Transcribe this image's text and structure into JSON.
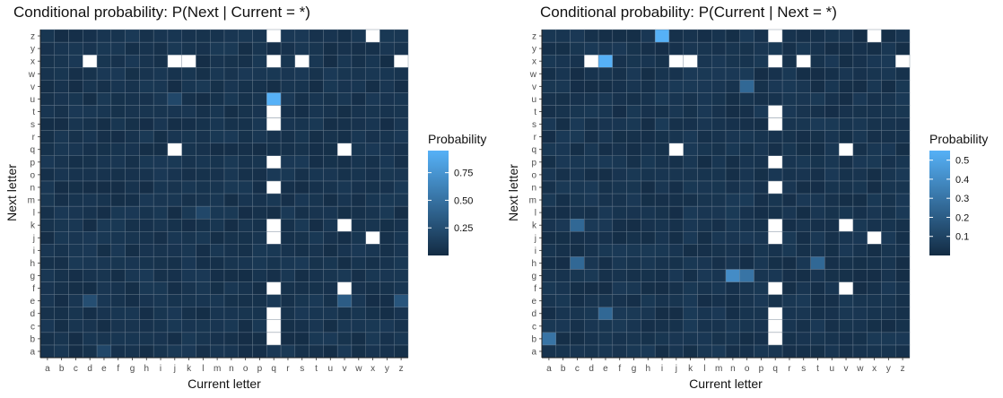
{
  "chart_data": [
    {
      "type": "heatmap",
      "title": "Conditional probability: P(Next | Current = *)",
      "xlabel": "Current letter",
      "ylabel": "Next letter",
      "legend_title": "Probability",
      "legend_ticks": [
        0.25,
        0.5,
        0.75
      ],
      "legend_tick_labels": [
        "0.25",
        "0.50",
        "0.75"
      ],
      "value_range": [
        0.0,
        0.95
      ],
      "x_categories": [
        "a",
        "b",
        "c",
        "d",
        "e",
        "f",
        "g",
        "h",
        "i",
        "j",
        "k",
        "l",
        "m",
        "n",
        "o",
        "p",
        "q",
        "r",
        "s",
        "t",
        "u",
        "v",
        "w",
        "x",
        "y",
        "z"
      ],
      "y_categories": [
        "a",
        "b",
        "c",
        "d",
        "e",
        "f",
        "g",
        "h",
        "i",
        "j",
        "k",
        "l",
        "m",
        "n",
        "o",
        "p",
        "q",
        "r",
        "s",
        "t",
        "u",
        "v",
        "w",
        "x",
        "y",
        "z"
      ],
      "missing": [
        [
          "q",
          "z"
        ],
        [
          "x",
          "z"
        ],
        [
          "d",
          "x"
        ],
        [
          "j",
          "x"
        ],
        [
          "k",
          "x"
        ],
        [
          "q",
          "x"
        ],
        [
          "s",
          "x"
        ],
        [
          "z",
          "x"
        ],
        [
          "q",
          "t"
        ],
        [
          "q",
          "s"
        ],
        [
          "j",
          "q"
        ],
        [
          "v",
          "q"
        ],
        [
          "q",
          "p"
        ],
        [
          "q",
          "n"
        ],
        [
          "v",
          "k"
        ],
        [
          "q",
          "k"
        ],
        [
          "q",
          "j"
        ],
        [
          "x",
          "j"
        ],
        [
          "q",
          "f"
        ],
        [
          "v",
          "f"
        ],
        [
          "q",
          "d"
        ],
        [
          "q",
          "c"
        ],
        [
          "q",
          "b"
        ]
      ],
      "highlights": [
        {
          "x": "q",
          "y": "u",
          "value": 0.95
        },
        {
          "x": "e",
          "y": "a",
          "value": 0.2
        },
        {
          "x": "v",
          "y": "e",
          "value": 0.35
        },
        {
          "x": "z",
          "y": "e",
          "value": 0.3
        },
        {
          "x": "d",
          "y": "e",
          "value": 0.25
        },
        {
          "x": "j",
          "y": "u",
          "value": 0.2
        },
        {
          "x": "l",
          "y": "l",
          "value": 0.2
        }
      ],
      "base_value": 0.05
    },
    {
      "type": "heatmap",
      "title": "Conditional probability: P(Current | Next = *)",
      "xlabel": "Current letter",
      "ylabel": "Next letter",
      "legend_title": "Probability",
      "legend_ticks": [
        0.1,
        0.2,
        0.3,
        0.4,
        0.5
      ],
      "legend_tick_labels": [
        "0.1",
        "0.2",
        "0.3",
        "0.4",
        "0.5"
      ],
      "value_range": [
        0.0,
        0.55
      ],
      "x_categories": [
        "a",
        "b",
        "c",
        "d",
        "e",
        "f",
        "g",
        "h",
        "i",
        "j",
        "k",
        "l",
        "m",
        "n",
        "o",
        "p",
        "q",
        "r",
        "s",
        "t",
        "u",
        "v",
        "w",
        "x",
        "y",
        "z"
      ],
      "y_categories": [
        "a",
        "b",
        "c",
        "d",
        "e",
        "f",
        "g",
        "h",
        "i",
        "j",
        "k",
        "l",
        "m",
        "n",
        "o",
        "p",
        "q",
        "r",
        "s",
        "t",
        "u",
        "v",
        "w",
        "x",
        "y",
        "z"
      ],
      "missing": [
        [
          "q",
          "z"
        ],
        [
          "x",
          "z"
        ],
        [
          "d",
          "x"
        ],
        [
          "j",
          "x"
        ],
        [
          "k",
          "x"
        ],
        [
          "q",
          "x"
        ],
        [
          "s",
          "x"
        ],
        [
          "z",
          "x"
        ],
        [
          "q",
          "t"
        ],
        [
          "q",
          "s"
        ],
        [
          "j",
          "q"
        ],
        [
          "v",
          "q"
        ],
        [
          "q",
          "p"
        ],
        [
          "q",
          "n"
        ],
        [
          "v",
          "k"
        ],
        [
          "q",
          "k"
        ],
        [
          "q",
          "j"
        ],
        [
          "x",
          "j"
        ],
        [
          "q",
          "f"
        ],
        [
          "v",
          "f"
        ],
        [
          "q",
          "d"
        ],
        [
          "q",
          "c"
        ],
        [
          "q",
          "b"
        ]
      ],
      "highlights": [
        {
          "x": "i",
          "y": "z",
          "value": 0.55
        },
        {
          "x": "e",
          "y": "x",
          "value": 0.55
        },
        {
          "x": "n",
          "y": "g",
          "value": 0.4
        },
        {
          "x": "a",
          "y": "b",
          "value": 0.3
        },
        {
          "x": "c",
          "y": "k",
          "value": 0.25
        },
        {
          "x": "c",
          "y": "h",
          "value": 0.25
        },
        {
          "x": "e",
          "y": "d",
          "value": 0.25
        },
        {
          "x": "o",
          "y": "v",
          "value": 0.25
        },
        {
          "x": "o",
          "y": "g",
          "value": 0.3
        },
        {
          "x": "t",
          "y": "h",
          "value": 0.25
        }
      ],
      "base_value": 0.03
    }
  ]
}
